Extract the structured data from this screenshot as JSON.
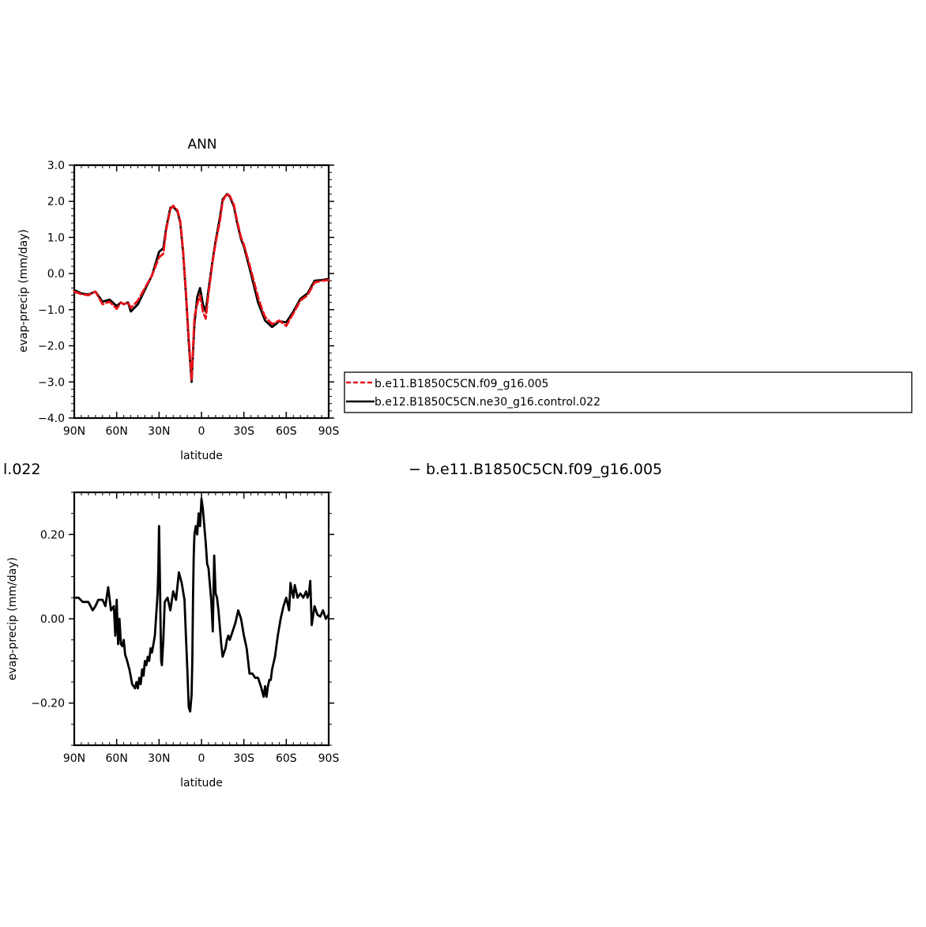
{
  "chart_data": [
    {
      "type": "line",
      "title": "ANN",
      "xlabel": "latitude",
      "ylabel": "evap-precip (mm/day)",
      "x_tick_labels": [
        "90N",
        "60N",
        "30N",
        "0",
        "30S",
        "60S",
        "90S"
      ],
      "x_tick_values": [
        -90,
        -60,
        -30,
        0,
        30,
        60,
        90
      ],
      "xlim": [
        -90,
        90
      ],
      "ylim": [
        -4.0,
        3.0
      ],
      "y_ticks": [
        -4.0,
        -3.0,
        -2.0,
        -1.0,
        0.0,
        1.0,
        2.0,
        3.0
      ],
      "y_tick_labels": [
        "−4.0",
        "−3.0",
        "−2.0",
        "−1.0",
        "0.0",
        "1.0",
        "2.0",
        "3.0"
      ],
      "grid": false,
      "legend_position": "right",
      "x": [
        -90,
        -85,
        -80,
        -75,
        -70,
        -65,
        -60,
        -57,
        -55,
        -52,
        -50,
        -45,
        -40,
        -35,
        -30,
        -27,
        -25,
        -22,
        -20,
        -17,
        -15,
        -13,
        -11,
        -9,
        -7,
        -5,
        -3,
        -1,
        1,
        3,
        5,
        8,
        10,
        13,
        15,
        18,
        20,
        23,
        25,
        28,
        30,
        35,
        40,
        43,
        45,
        50,
        55,
        60,
        65,
        70,
        75,
        80,
        85,
        90
      ],
      "series": [
        {
          "name": "b.e11.B1850C5CN.f09_g16.005",
          "color": "#e8141a",
          "dash": "dashed",
          "values": [
            -0.5,
            -0.57,
            -0.6,
            -0.5,
            -0.85,
            -0.78,
            -0.98,
            -0.8,
            -0.85,
            -0.8,
            -0.95,
            -0.75,
            -0.4,
            -0.05,
            0.45,
            0.55,
            1.2,
            1.78,
            1.88,
            1.75,
            1.45,
            0.65,
            -0.5,
            -1.8,
            -2.95,
            -1.2,
            -0.85,
            -0.6,
            -1.05,
            -1.25,
            -0.55,
            0.35,
            0.85,
            1.45,
            2.0,
            2.22,
            2.15,
            1.9,
            1.5,
            1.0,
            0.8,
            0.1,
            -0.65,
            -1.0,
            -1.2,
            -1.4,
            -1.3,
            -1.45,
            -1.1,
            -0.75,
            -0.6,
            -0.25,
            -0.2,
            -0.18
          ]
        },
        {
          "name": "b.e12.B1850C5CN.ne30_g16.control.022",
          "color": "#000000",
          "dash": "solid",
          "values": [
            -0.46,
            -0.55,
            -0.58,
            -0.5,
            -0.78,
            -0.72,
            -0.9,
            -0.8,
            -0.85,
            -0.8,
            -1.05,
            -0.85,
            -0.45,
            -0.05,
            0.6,
            0.7,
            1.25,
            1.82,
            1.85,
            1.72,
            1.4,
            0.6,
            -0.55,
            -1.9,
            -3.0,
            -1.4,
            -0.65,
            -0.4,
            -0.85,
            -1.05,
            -0.45,
            0.4,
            0.9,
            1.55,
            2.05,
            2.2,
            2.13,
            1.85,
            1.45,
            0.95,
            0.75,
            0.0,
            -0.8,
            -1.1,
            -1.3,
            -1.48,
            -1.32,
            -1.35,
            -1.05,
            -0.7,
            -0.55,
            -0.2,
            -0.18,
            -0.15
          ]
        }
      ]
    },
    {
      "type": "line",
      "title_fragment_left": "l.022",
      "title_fragment_right": "− b.e11.B1850C5CN.f09_g16.005",
      "xlabel": "latitude",
      "ylabel": "evap-precip (mm/day)",
      "x_tick_labels": [
        "90N",
        "60N",
        "30N",
        "0",
        "30S",
        "60S",
        "90S"
      ],
      "x_tick_values": [
        -90,
        -60,
        -30,
        0,
        30,
        60,
        90
      ],
      "xlim": [
        -90,
        90
      ],
      "ylim": [
        -0.3,
        0.3
      ],
      "y_ticks": [
        -0.2,
        0.0,
        0.2
      ],
      "y_tick_labels": [
        "−0.20",
        "0.00",
        "0.20"
      ],
      "grid": false,
      "x": [
        -90,
        -87,
        -84,
        -80,
        -77,
        -75,
        -73,
        -70,
        -68,
        -66,
        -64,
        -62,
        -61,
        -60,
        -59,
        -58,
        -57,
        -56,
        -55,
        -54,
        -53,
        -51,
        -49,
        -47,
        -46,
        -45,
        -44,
        -43,
        -42,
        -41,
        -40,
        -39,
        -38,
        -37,
        -36,
        -35,
        -33,
        -31,
        -30.5,
        -30,
        -29.5,
        -29,
        -28.5,
        -28,
        -27,
        -26,
        -24,
        -22,
        -20,
        -18,
        -16,
        -14,
        -12,
        -11,
        -10,
        -9,
        -8,
        -7,
        -6.5,
        -6,
        -5.5,
        -5,
        -4,
        -3,
        -2,
        -1,
        0,
        1,
        2,
        3,
        4,
        5,
        6,
        7,
        8,
        9,
        10,
        11,
        12,
        13,
        14,
        15,
        16,
        17,
        18,
        19,
        20,
        22,
        24,
        26,
        28,
        30,
        32,
        34,
        36,
        38,
        40,
        42,
        44,
        45,
        46,
        47,
        48,
        49,
        50,
        52,
        54,
        56,
        58,
        60,
        62,
        63,
        64,
        65,
        66,
        68,
        70,
        72,
        74,
        75,
        76,
        77,
        78,
        80,
        82,
        84,
        86,
        88,
        90
      ],
      "series": [
        {
          "name": "",
          "color": "#000000",
          "dash": "solid",
          "values": [
            0.05,
            0.05,
            0.04,
            0.04,
            0.02,
            0.03,
            0.045,
            0.045,
            0.03,
            0.075,
            0.02,
            0.03,
            -0.04,
            0.045,
            -0.06,
            0.0,
            -0.06,
            -0.065,
            -0.05,
            -0.085,
            -0.095,
            -0.12,
            -0.155,
            -0.165,
            -0.15,
            -0.165,
            -0.14,
            -0.155,
            -0.12,
            -0.135,
            -0.1,
            -0.11,
            -0.09,
            -0.1,
            -0.07,
            -0.08,
            -0.04,
            0.06,
            0.12,
            0.22,
            0.12,
            0.0,
            -0.1,
            -0.11,
            -0.05,
            0.04,
            0.05,
            0.02,
            0.065,
            0.045,
            0.11,
            0.085,
            0.045,
            -0.04,
            -0.12,
            -0.21,
            -0.22,
            -0.18,
            -0.1,
            0.05,
            0.15,
            0.2,
            0.22,
            0.2,
            0.25,
            0.22,
            0.285,
            0.26,
            0.22,
            0.18,
            0.13,
            0.12,
            0.08,
            0.04,
            -0.03,
            0.15,
            0.06,
            0.05,
            0.02,
            -0.02,
            -0.06,
            -0.09,
            -0.08,
            -0.07,
            -0.05,
            -0.04,
            -0.05,
            -0.03,
            -0.01,
            0.02,
            0.0,
            -0.04,
            -0.07,
            -0.13,
            -0.13,
            -0.14,
            -0.14,
            -0.16,
            -0.185,
            -0.16,
            -0.185,
            -0.16,
            -0.145,
            -0.145,
            -0.12,
            -0.09,
            -0.04,
            0.0,
            0.03,
            0.05,
            0.02,
            0.085,
            0.065,
            0.05,
            0.08,
            0.05,
            0.06,
            0.05,
            0.065,
            0.05,
            0.06,
            0.09,
            -0.015,
            0.03,
            0.01,
            0.005,
            0.02,
            0.0,
            0.01
          ]
        }
      ]
    }
  ]
}
